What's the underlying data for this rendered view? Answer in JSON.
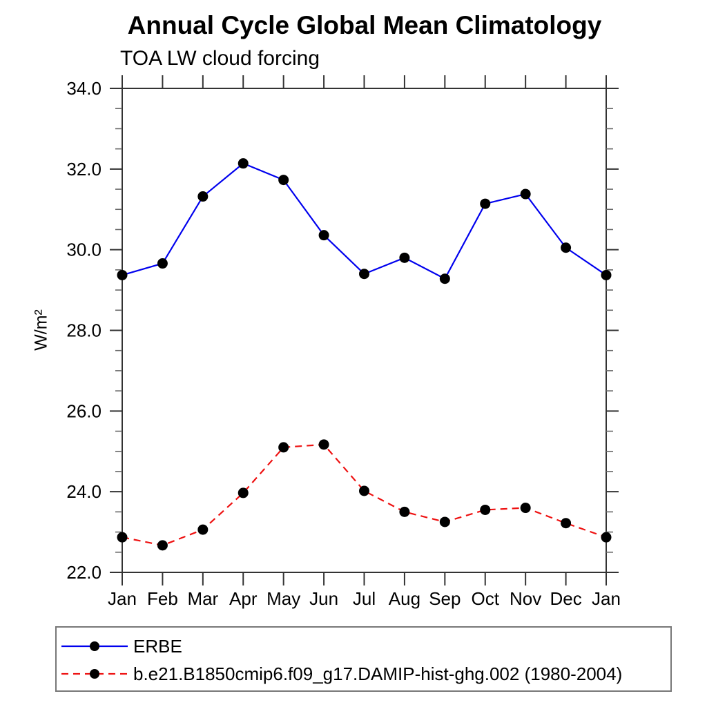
{
  "chart_data": {
    "type": "line",
    "title": "Annual Cycle Global Mean Climatology",
    "subtitle": "TOA LW cloud forcing",
    "ylabel": "W/m²",
    "xlabel": "",
    "categories": [
      "Jan",
      "Feb",
      "Mar",
      "Apr",
      "May",
      "Jun",
      "Jul",
      "Aug",
      "Sep",
      "Oct",
      "Nov",
      "Dec",
      "Jan"
    ],
    "ylim": [
      22.0,
      34.0
    ],
    "y_major_step": 2.0,
    "y_minor_step": 0.5,
    "y_tick_decimals": 1,
    "grid": false,
    "legend_position": "bottom-left",
    "series": [
      {
        "name": "ERBE",
        "color": "#0000ee",
        "line_style": "solid",
        "marker": "filled-circle",
        "marker_color": "#000000",
        "values": [
          29.37,
          29.66,
          31.32,
          32.14,
          31.73,
          30.36,
          29.4,
          29.8,
          29.28,
          31.14,
          31.38,
          30.05,
          29.37
        ]
      },
      {
        "name": "b.e21.B1850cmip6.f09_g17.DAMIP-hist-ghg.002 (1980-2004)",
        "color": "#ee1111",
        "line_style": "dashed",
        "marker": "filled-circle",
        "marker_color": "#000000",
        "values": [
          22.87,
          22.67,
          23.06,
          23.97,
          25.1,
          25.17,
          24.02,
          23.5,
          23.25,
          23.55,
          23.6,
          23.22,
          22.87
        ]
      }
    ]
  }
}
